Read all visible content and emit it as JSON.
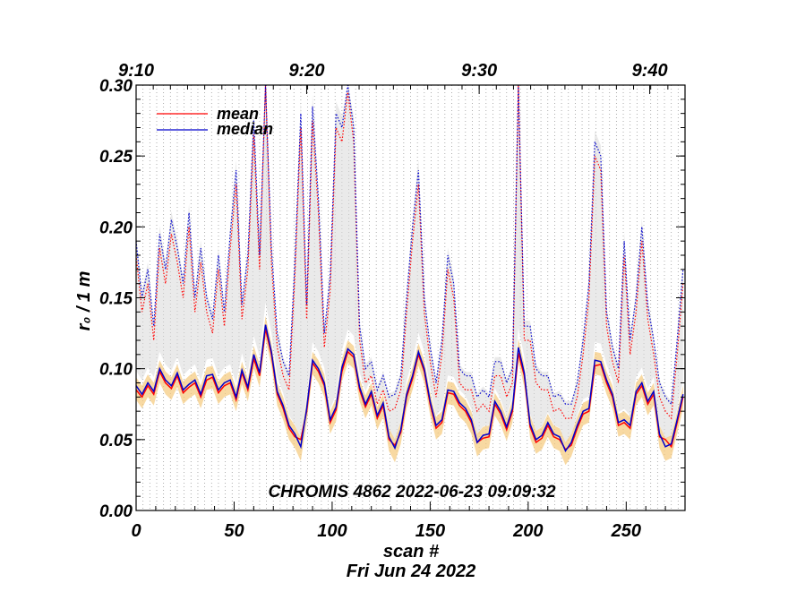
{
  "chart_data": {
    "type": "line",
    "title": "",
    "annotation": "CHROMIS 4862 2022-06-23 09:09:32",
    "xlabel": "scan #",
    "xlabel2": "Fri Jun 24 2022",
    "ylabel": "r₀ / 1 m",
    "xlim": [
      0,
      280
    ],
    "ylim": [
      0.0,
      0.3
    ],
    "x_ticks": [
      0,
      50,
      100,
      150,
      200,
      250
    ],
    "x_tick_labels": [
      "0",
      "50",
      "100",
      "150",
      "200",
      "250"
    ],
    "y_ticks": [
      0.0,
      0.05,
      0.1,
      0.15,
      0.2,
      0.25,
      0.3
    ],
    "y_tick_labels": [
      "0.00",
      "0.05",
      "0.10",
      "0.15",
      "0.20",
      "0.25",
      "0.30"
    ],
    "top_axis": {
      "label_positions": [
        0,
        87,
        175,
        262
      ],
      "labels": [
        "9:10",
        "9:20",
        "9:30",
        "9:40"
      ]
    },
    "grid": "vertical dotted line at each scan",
    "legend_position": "top-left",
    "colors": {
      "mean": "#ff0000",
      "median": "#0000cc",
      "band_low": "#f5c97a",
      "band_high": "#d8d8d8"
    },
    "series_x": [
      0,
      3,
      6,
      9,
      12,
      15,
      18,
      21,
      24,
      27,
      30,
      33,
      36,
      39,
      42,
      45,
      48,
      51,
      54,
      57,
      60,
      63,
      66,
      69,
      72,
      75,
      78,
      81,
      84,
      87,
      90,
      93,
      96,
      99,
      102,
      105,
      108,
      111,
      114,
      117,
      120,
      123,
      126,
      129,
      132,
      135,
      138,
      141,
      144,
      147,
      150,
      153,
      156,
      159,
      162,
      165,
      168,
      171,
      174,
      177,
      180,
      183,
      186,
      189,
      192,
      195,
      198,
      201,
      204,
      207,
      210,
      213,
      216,
      219,
      222,
      225,
      228,
      231,
      234,
      237,
      240,
      243,
      246,
      249,
      252,
      255,
      258,
      261,
      264,
      267,
      270,
      273,
      276,
      279
    ],
    "series": [
      {
        "name": "mean",
        "style": "solid",
        "values": [
          0.085,
          0.08,
          0.088,
          0.082,
          0.098,
          0.09,
          0.086,
          0.095,
          0.083,
          0.087,
          0.09,
          0.08,
          0.092,
          0.094,
          0.083,
          0.088,
          0.09,
          0.078,
          0.097,
          0.085,
          0.107,
          0.095,
          0.128,
          0.11,
          0.082,
          0.072,
          0.058,
          0.052,
          0.05,
          0.07,
          0.104,
          0.098,
          0.088,
          0.062,
          0.071,
          0.098,
          0.112,
          0.108,
          0.085,
          0.073,
          0.082,
          0.065,
          0.074,
          0.05,
          0.046,
          0.055,
          0.08,
          0.093,
          0.11,
          0.098,
          0.075,
          0.058,
          0.062,
          0.083,
          0.082,
          0.074,
          0.07,
          0.062,
          0.048,
          0.051,
          0.052,
          0.075,
          0.068,
          0.057,
          0.07,
          0.111,
          0.095,
          0.059,
          0.048,
          0.051,
          0.06,
          0.052,
          0.05,
          0.043,
          0.046,
          0.058,
          0.068,
          0.07,
          0.102,
          0.103,
          0.09,
          0.08,
          0.06,
          0.062,
          0.058,
          0.082,
          0.088,
          0.075,
          0.082,
          0.052,
          0.05,
          0.045,
          0.062,
          0.08
        ],
        "dotted_values": [
          0.18,
          0.14,
          0.16,
          0.12,
          0.185,
          0.16,
          0.195,
          0.175,
          0.15,
          0.2,
          0.14,
          0.175,
          0.14,
          0.125,
          0.17,
          0.13,
          0.185,
          0.23,
          0.135,
          0.17,
          0.265,
          0.17,
          0.3,
          0.175,
          0.115,
          0.095,
          0.085,
          0.165,
          0.27,
          0.135,
          0.275,
          0.21,
          0.115,
          0.155,
          0.27,
          0.26,
          0.295,
          0.26,
          0.12,
          0.09,
          0.095,
          0.075,
          0.085,
          0.07,
          0.072,
          0.085,
          0.14,
          0.19,
          0.23,
          0.14,
          0.105,
          0.08,
          0.11,
          0.17,
          0.15,
          0.09,
          0.085,
          0.085,
          0.07,
          0.075,
          0.07,
          0.095,
          0.095,
          0.08,
          0.09,
          0.3,
          0.12,
          0.12,
          0.09,
          0.085,
          0.085,
          0.07,
          0.072,
          0.065,
          0.065,
          0.08,
          0.11,
          0.15,
          0.25,
          0.24,
          0.13,
          0.105,
          0.09,
          0.18,
          0.11,
          0.14,
          0.19,
          0.135,
          0.11,
          0.08,
          0.07,
          0.065,
          0.11,
          0.16
        ]
      },
      {
        "name": "median",
        "style": "solid",
        "values": [
          0.088,
          0.082,
          0.09,
          0.084,
          0.1,
          0.092,
          0.088,
          0.097,
          0.085,
          0.089,
          0.092,
          0.082,
          0.095,
          0.096,
          0.085,
          0.09,
          0.092,
          0.08,
          0.099,
          0.087,
          0.11,
          0.097,
          0.131,
          0.112,
          0.084,
          0.074,
          0.06,
          0.054,
          0.045,
          0.072,
          0.106,
          0.1,
          0.09,
          0.064,
          0.073,
          0.101,
          0.114,
          0.11,
          0.087,
          0.075,
          0.084,
          0.067,
          0.076,
          0.052,
          0.044,
          0.057,
          0.082,
          0.095,
          0.112,
          0.1,
          0.077,
          0.06,
          0.064,
          0.085,
          0.084,
          0.076,
          0.072,
          0.064,
          0.048,
          0.053,
          0.054,
          0.077,
          0.07,
          0.059,
          0.072,
          0.115,
          0.097,
          0.061,
          0.05,
          0.053,
          0.062,
          0.054,
          0.052,
          0.042,
          0.048,
          0.06,
          0.07,
          0.072,
          0.106,
          0.105,
          0.092,
          0.082,
          0.062,
          0.064,
          0.06,
          0.084,
          0.09,
          0.077,
          0.084,
          0.054,
          0.045,
          0.047,
          0.064,
          0.082
        ],
        "dotted_values": [
          0.19,
          0.15,
          0.17,
          0.13,
          0.195,
          0.17,
          0.205,
          0.185,
          0.16,
          0.21,
          0.15,
          0.185,
          0.15,
          0.135,
          0.18,
          0.14,
          0.195,
          0.24,
          0.145,
          0.18,
          0.275,
          0.18,
          0.3,
          0.185,
          0.125,
          0.105,
          0.095,
          0.175,
          0.28,
          0.145,
          0.285,
          0.22,
          0.125,
          0.165,
          0.28,
          0.27,
          0.3,
          0.27,
          0.13,
          0.1,
          0.105,
          0.085,
          0.095,
          0.08,
          0.082,
          0.095,
          0.15,
          0.2,
          0.24,
          0.15,
          0.115,
          0.09,
          0.12,
          0.18,
          0.16,
          0.1,
          0.095,
          0.095,
          0.08,
          0.085,
          0.08,
          0.105,
          0.105,
          0.09,
          0.1,
          0.3,
          0.13,
          0.13,
          0.1,
          0.095,
          0.095,
          0.08,
          0.082,
          0.075,
          0.075,
          0.09,
          0.12,
          0.16,
          0.26,
          0.25,
          0.14,
          0.115,
          0.1,
          0.19,
          0.12,
          0.15,
          0.2,
          0.145,
          0.12,
          0.09,
          0.08,
          0.075,
          0.12,
          0.17
        ]
      }
    ]
  }
}
